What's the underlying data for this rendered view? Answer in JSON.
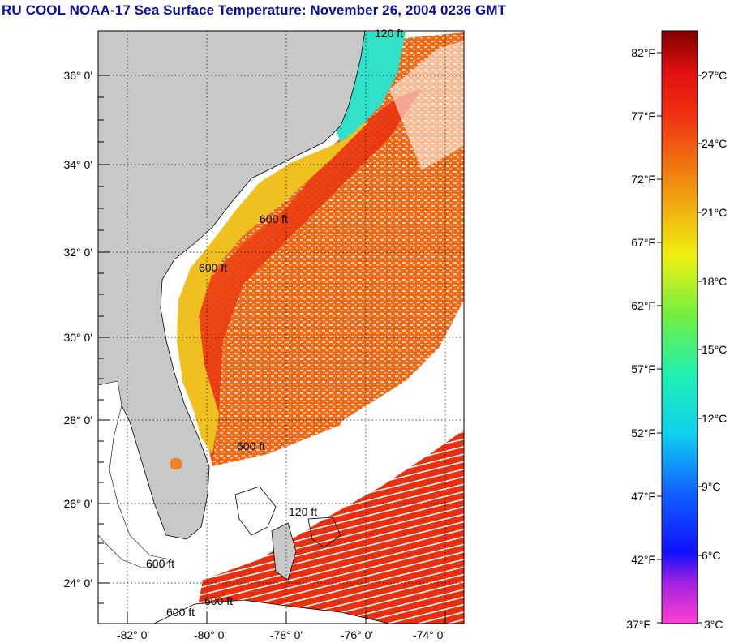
{
  "header": {
    "title": "RU COOL  NOAA-17  Sea Surface Temperature:  November 26, 2004 0236 GMT"
  },
  "map": {
    "lat_labels": [
      "36° 0'",
      "34° 0'",
      "32° 0'",
      "30° 0'",
      "28° 0'",
      "26° 0'",
      "24° 0'"
    ],
    "lon_labels": [
      "-82° 0'",
      "-80° 0'",
      "-78° 0'",
      "-76° 0'",
      "-74° 0'"
    ],
    "contour_labels": [
      "120 ft",
      "600 ft",
      "600 ft",
      "600 ft",
      "600 ft",
      "120 ft",
      "600 ft",
      "600 ft"
    ],
    "colors": {
      "land": "#c8c8c8",
      "no_data": "#ffffff",
      "warm_water": "#e83010",
      "coastal_water": "#f0c020",
      "cold_water": "#30e0c8"
    }
  },
  "colorbar": {
    "fahrenheit_labels": [
      "82°F",
      "77°F",
      "72°F",
      "67°F",
      "62°F",
      "57°F",
      "52°F",
      "47°F",
      "42°F",
      "37°F"
    ],
    "celsius_labels": [
      "27°C",
      "24°C",
      "21°C",
      "18°C",
      "15°C",
      "12°C",
      "9°C",
      "6°C",
      "3°C"
    ]
  }
}
